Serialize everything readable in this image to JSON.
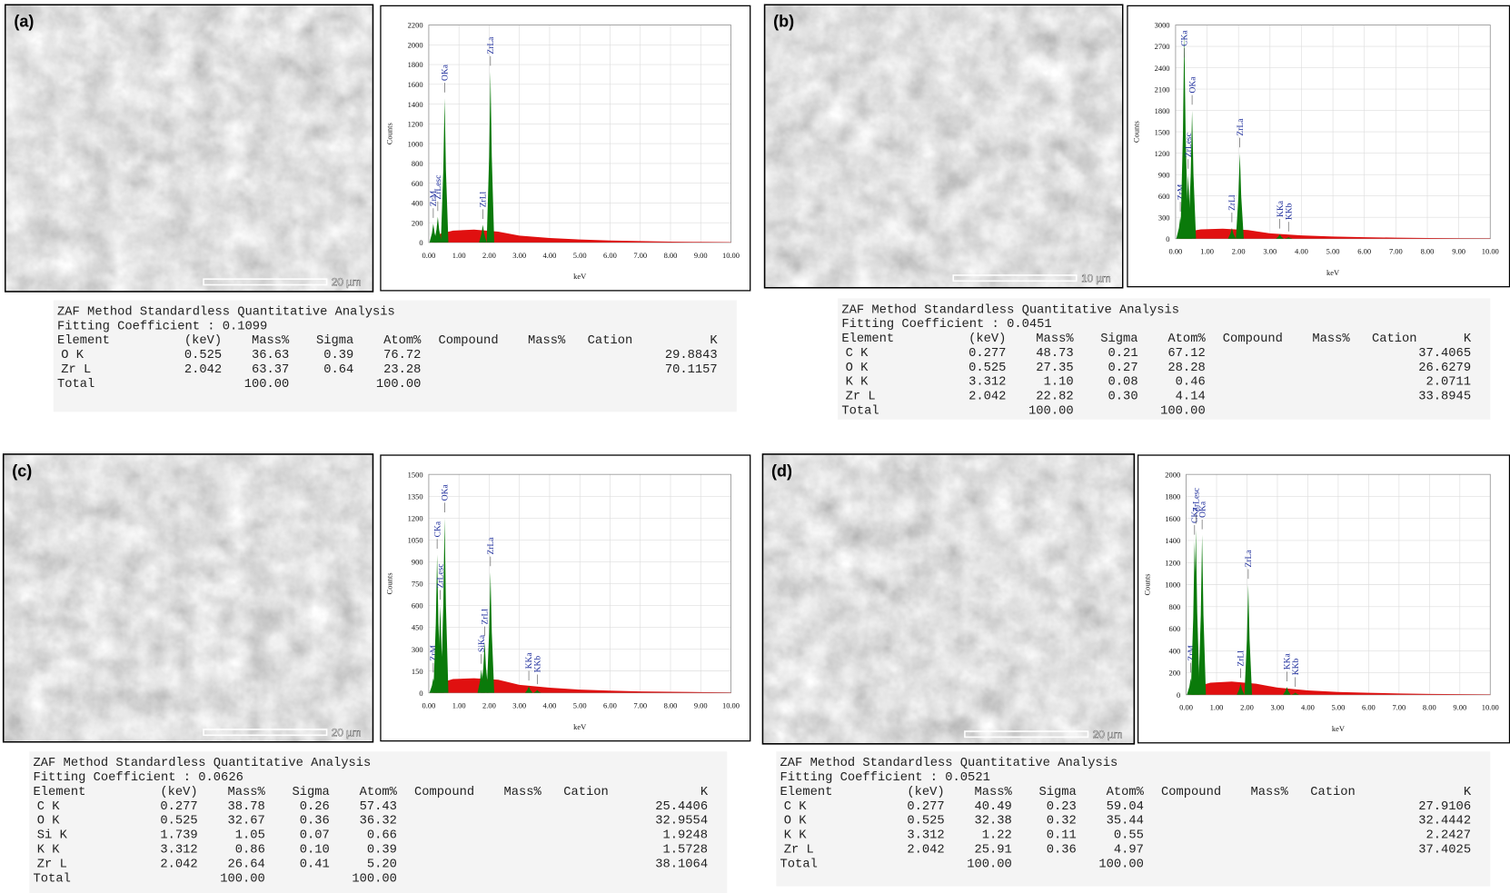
{
  "x_axis": {
    "label": "keV",
    "xlim": [
      0,
      10
    ],
    "xticks": [
      {
        "value": 0,
        "label": "0.00"
      },
      {
        "value": 1,
        "label": "1.00"
      },
      {
        "value": 2,
        "label": "2.00"
      },
      {
        "value": 3,
        "label": "3.00"
      },
      {
        "value": 4,
        "label": "4.00"
      },
      {
        "value": 5,
        "label": "5.00"
      },
      {
        "value": 6,
        "label": "6.00"
      },
      {
        "value": 7,
        "label": "7.00"
      },
      {
        "value": 8,
        "label": "8.00"
      },
      {
        "value": 9,
        "label": "9.00"
      },
      {
        "value": 10,
        "label": "10.00"
      }
    ]
  },
  "y_label": "Counts",
  "panels": [
    {
      "label": "(a)",
      "scale_bar": "20 µm",
      "spectrum": {
        "type": "spectrum",
        "ylim": [
          0,
          2200
        ],
        "yticks": [
          0,
          200,
          400,
          600,
          800,
          1000,
          1200,
          1400,
          1600,
          1800,
          2000,
          2200
        ],
        "continuum": [
          [
            0.1,
            40
          ],
          [
            0.4,
            90
          ],
          [
            0.8,
            120
          ],
          [
            1.5,
            130
          ],
          [
            2.3,
            110
          ],
          [
            3,
            70
          ],
          [
            4,
            45
          ],
          [
            5,
            30
          ],
          [
            6,
            20
          ],
          [
            7,
            14
          ],
          [
            8,
            9
          ],
          [
            9,
            6
          ],
          [
            10,
            4
          ]
        ],
        "peaks": [
          {
            "label": "ZrM",
            "x": 0.15,
            "y": 190
          },
          {
            "label": "ZrLesc",
            "x": 0.3,
            "y": 260
          },
          {
            "label": "OKa",
            "x": 0.525,
            "y": 1460
          },
          {
            "label": "ZrLl",
            "x": 1.79,
            "y": 180
          },
          {
            "label": "ZrLa",
            "x": 2.042,
            "y": 1730
          }
        ]
      },
      "table": {
        "title": "ZAF Method Standardless Quantitative Analysis",
        "fitting": "Fitting Coefficient : 0.1099",
        "header": [
          "Element",
          "(keV)",
          "Mass%",
          "Sigma",
          "Atom%",
          "Compound",
          "Mass%",
          "Cation",
          "K"
        ],
        "rows": [
          [
            "O K",
            "0.525",
            "36.63",
            "0.39",
            "76.72",
            "29.8843"
          ],
          [
            "Zr L",
            "2.042",
            "63.37",
            "0.64",
            "23.28",
            "70.1157"
          ]
        ],
        "total": [
          "Total",
          "100.00",
          "100.00"
        ]
      }
    },
    {
      "label": "(b)",
      "scale_bar": "10 µm",
      "spectrum": {
        "type": "spectrum",
        "ylim": [
          0,
          3000
        ],
        "yticks": [
          0,
          300,
          600,
          900,
          1200,
          1500,
          1800,
          2100,
          2400,
          2700,
          3000
        ],
        "continuum": [
          [
            0.1,
            40
          ],
          [
            0.4,
            100
          ],
          [
            0.8,
            130
          ],
          [
            1.5,
            140
          ],
          [
            2.3,
            120
          ],
          [
            3,
            75
          ],
          [
            4,
            45
          ],
          [
            5,
            30
          ],
          [
            6,
            20
          ],
          [
            7,
            14
          ],
          [
            8,
            9
          ],
          [
            9,
            6
          ],
          [
            10,
            4
          ]
        ],
        "peaks": [
          {
            "label": "ZrM",
            "x": 0.15,
            "y": 300
          },
          {
            "label": "CKa",
            "x": 0.277,
            "y": 2900
          },
          {
            "label": "ZrLesc",
            "x": 0.4,
            "y": 900
          },
          {
            "label": "OKa",
            "x": 0.525,
            "y": 1800
          },
          {
            "label": "ZrLl",
            "x": 1.79,
            "y": 150
          },
          {
            "label": "ZrLa",
            "x": 2.042,
            "y": 1200
          },
          {
            "label": "KKa",
            "x": 3.312,
            "y": 60
          },
          {
            "label": "KKb",
            "x": 3.59,
            "y": 20
          }
        ]
      },
      "table": {
        "title": "ZAF Method Standardless Quantitative Analysis",
        "fitting": "Fitting Coefficient : 0.0451",
        "header": [
          "Element",
          "(keV)",
          "Mass%",
          "Sigma",
          "Atom%",
          "Compound",
          "Mass%",
          "Cation",
          "K"
        ],
        "rows": [
          [
            "C K",
            "0.277",
            "48.73",
            "0.21",
            "67.12",
            "37.4065"
          ],
          [
            "O K",
            "0.525",
            "27.35",
            "0.27",
            "28.28",
            "26.6279"
          ],
          [
            "K K",
            "3.312",
            "1.10",
            "0.08",
            "0.46",
            "2.0711"
          ],
          [
            "Zr L",
            "2.042",
            "22.82",
            "0.30",
            "4.14",
            "33.8945"
          ]
        ],
        "total": [
          "Total",
          "100.00",
          "100.00"
        ]
      }
    },
    {
      "label": "(c)",
      "scale_bar": "20 µm",
      "spectrum": {
        "type": "spectrum",
        "ylim": [
          0,
          1500
        ],
        "yticks": [
          0,
          150,
          300,
          450,
          600,
          750,
          900,
          1050,
          1200,
          1350,
          1500
        ],
        "continuum": [
          [
            0.1,
            30
          ],
          [
            0.4,
            70
          ],
          [
            0.8,
            95
          ],
          [
            1.5,
            100
          ],
          [
            2.3,
            90
          ],
          [
            3,
            55
          ],
          [
            4,
            35
          ],
          [
            5,
            22
          ],
          [
            6,
            15
          ],
          [
            7,
            10
          ],
          [
            8,
            7
          ],
          [
            9,
            5
          ],
          [
            10,
            3
          ]
        ],
        "peaks": [
          {
            "label": "ZrM",
            "x": 0.15,
            "y": 100
          },
          {
            "label": "CKa",
            "x": 0.277,
            "y": 950
          },
          {
            "label": "ZrLesc",
            "x": 0.38,
            "y": 600
          },
          {
            "label": "OKa",
            "x": 0.525,
            "y": 1200
          },
          {
            "label": "SiKa",
            "x": 1.739,
            "y": 160
          },
          {
            "label": "ZrLl",
            "x": 1.85,
            "y": 350
          },
          {
            "label": "ZrLa",
            "x": 2.042,
            "y": 830
          },
          {
            "label": "KKa",
            "x": 3.312,
            "y": 45
          },
          {
            "label": "KKb",
            "x": 3.59,
            "y": 20
          }
        ]
      },
      "table": {
        "title": "ZAF Method Standardless Quantitative Analysis",
        "fitting": "Fitting Coefficient : 0.0626",
        "header": [
          "Element",
          "(keV)",
          "Mass%",
          "Sigma",
          "Atom%",
          "Compound",
          "Mass%",
          "Cation",
          "K"
        ],
        "rows": [
          [
            "C K",
            "0.277",
            "38.78",
            "0.26",
            "57.43",
            "25.4406"
          ],
          [
            "O K",
            "0.525",
            "32.67",
            "0.36",
            "36.32",
            "32.9554"
          ],
          [
            "Si K",
            "1.739",
            "1.05",
            "0.07",
            "0.66",
            "1.9248"
          ],
          [
            "K K",
            "3.312",
            "0.86",
            "0.10",
            "0.39",
            "1.5728"
          ],
          [
            "Zr L",
            "2.042",
            "26.64",
            "0.41",
            "5.20",
            "38.1064"
          ]
        ],
        "total": [
          "Total",
          "100.00",
          "100.00"
        ]
      }
    },
    {
      "label": "(d)",
      "scale_bar": "20 µm",
      "spectrum": {
        "type": "spectrum",
        "ylim": [
          0,
          2000
        ],
        "yticks": [
          0,
          200,
          400,
          600,
          800,
          1000,
          1200,
          1400,
          1600,
          1800,
          2000
        ],
        "continuum": [
          [
            0.1,
            30
          ],
          [
            0.4,
            80
          ],
          [
            0.8,
            110
          ],
          [
            1.5,
            120
          ],
          [
            2.3,
            100
          ],
          [
            3,
            65
          ],
          [
            4,
            40
          ],
          [
            5,
            25
          ],
          [
            6,
            18
          ],
          [
            7,
            12
          ],
          [
            8,
            8
          ],
          [
            9,
            5
          ],
          [
            10,
            3
          ]
        ],
        "peaks": [
          {
            "label": "ZrM",
            "x": 0.15,
            "y": 150
          },
          {
            "label": "CKa",
            "x": 0.277,
            "y": 1400
          },
          {
            "label": "ZrLesc",
            "x": 0.32,
            "y": 1500
          },
          {
            "label": "OKa",
            "x": 0.525,
            "y": 1450
          },
          {
            "label": "ZrLl",
            "x": 1.79,
            "y": 100
          },
          {
            "label": "ZrLa",
            "x": 2.042,
            "y": 1000
          },
          {
            "label": "KKa",
            "x": 3.312,
            "y": 70
          },
          {
            "label": "KKb",
            "x": 3.59,
            "y": 20
          }
        ]
      },
      "table": {
        "title": "ZAF Method Standardless Quantitative Analysis",
        "fitting": "Fitting Coefficient : 0.0521",
        "header": [
          "Element",
          "(keV)",
          "Mass%",
          "Sigma",
          "Atom%",
          "Compound",
          "Mass%",
          "Cation",
          "K"
        ],
        "rows": [
          [
            "C K",
            "0.277",
            "40.49",
            "0.23",
            "59.04",
            "27.9106"
          ],
          [
            "O K",
            "0.525",
            "32.38",
            "0.32",
            "35.44",
            "32.4442"
          ],
          [
            "K K",
            "3.312",
            "1.22",
            "0.11",
            "0.55",
            "2.2427"
          ],
          [
            "Zr L",
            "2.042",
            "25.91",
            "0.36",
            "4.97",
            "37.4025"
          ]
        ],
        "total": [
          "Total",
          "100.00",
          "100.00"
        ]
      }
    }
  ]
}
